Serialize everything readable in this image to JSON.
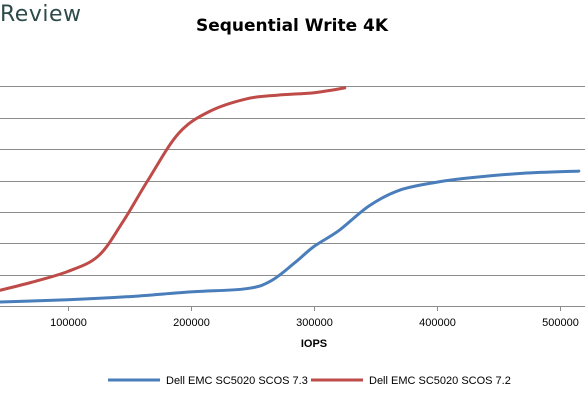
{
  "brand": {
    "text": "Review"
  },
  "chart_data": {
    "type": "line",
    "title": "Sequential Write 4K",
    "xlabel": "IOPS",
    "ylabel": "",
    "xlim": [
      45000,
      520000
    ],
    "ylim": [
      0,
      8
    ],
    "x_ticks": [
      100000,
      200000,
      300000,
      400000,
      500000
    ],
    "x_tick_labels": [
      "100000",
      "200000",
      "300000",
      "400000",
      "500000"
    ],
    "y_gridlines": [
      1,
      2,
      3,
      4,
      5,
      6,
      7
    ],
    "grid": true,
    "legend": "bottom",
    "series": [
      {
        "name": "Dell EMC SC5020 SCOS 7.3",
        "color": "#4a7ebb",
        "points": [
          [
            15000,
            0.09
          ],
          [
            100000,
            0.2
          ],
          [
            150000,
            0.3
          ],
          [
            200000,
            0.45
          ],
          [
            245000,
            0.55
          ],
          [
            265000,
            0.8
          ],
          [
            285000,
            1.4
          ],
          [
            300000,
            1.9
          ],
          [
            320000,
            2.4
          ],
          [
            345000,
            3.2
          ],
          [
            370000,
            3.7
          ],
          [
            400000,
            3.95
          ],
          [
            430000,
            4.1
          ],
          [
            470000,
            4.23
          ],
          [
            515000,
            4.3
          ]
        ]
      },
      {
        "name": "Dell EMC SC5020 SCOS 7.2",
        "color": "#be4b48",
        "points": [
          [
            45000,
            0.5
          ],
          [
            70000,
            0.75
          ],
          [
            100000,
            1.1
          ],
          [
            125000,
            1.6
          ],
          [
            145000,
            2.7
          ],
          [
            165000,
            4.0
          ],
          [
            190000,
            5.5
          ],
          [
            215000,
            6.2
          ],
          [
            245000,
            6.6
          ],
          [
            270000,
            6.72
          ],
          [
            300000,
            6.8
          ],
          [
            325000,
            6.95
          ]
        ]
      }
    ]
  }
}
